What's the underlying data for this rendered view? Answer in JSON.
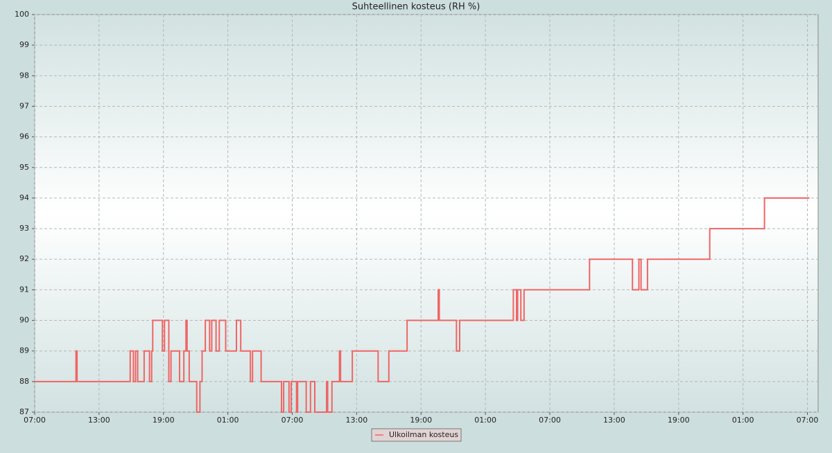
{
  "chart_data": {
    "type": "line",
    "title": "Suhteellinen kosteus (RH %)",
    "x": [
      0,
      3.85,
      3.85,
      3.95,
      3.95,
      8.9,
      8.9,
      9.2,
      9.2,
      9.4,
      9.4,
      9.6,
      9.6,
      10.2,
      10.2,
      10.7,
      10.7,
      10.9,
      10.9,
      11.0,
      11.0,
      11.9,
      11.9,
      12.1,
      12.1,
      12.5,
      12.5,
      12.7,
      12.7,
      13.5,
      13.5,
      13.9,
      13.9,
      14.1,
      14.1,
      14.2,
      14.2,
      14.4,
      14.4,
      15.1,
      15.1,
      15.4,
      15.4,
      15.6,
      15.6,
      15.9,
      15.9,
      16.3,
      16.3,
      16.5,
      16.5,
      16.9,
      16.9,
      17.2,
      17.2,
      17.8,
      17.8,
      18.8,
      18.8,
      19.2,
      19.2,
      20.1,
      20.1,
      20.3,
      20.3,
      21.1,
      21.1,
      23.0,
      23.0,
      23.2,
      23.2,
      23.7,
      23.7,
      23.9,
      23.9,
      24.4,
      24.4,
      24.5,
      24.5,
      25.3,
      25.3,
      25.7,
      25.7,
      26.1,
      26.1,
      27.2,
      27.2,
      27.3,
      27.3,
      27.7,
      27.7,
      28.4,
      28.4,
      28.5,
      28.5,
      29.6,
      29.6,
      32.0,
      32.0,
      33.0,
      33.0,
      34.7,
      34.7,
      37.6,
      37.6,
      37.7,
      37.7,
      39.3,
      39.3,
      39.6,
      39.6,
      44.6,
      44.6,
      44.9,
      44.9,
      45.0,
      45.0,
      45.3,
      45.3,
      45.6,
      45.6,
      51.7,
      51.7,
      55.7,
      55.7,
      56.3,
      56.3,
      56.5,
      56.5,
      57.1,
      57.1,
      62.9,
      62.9,
      68.0,
      68.0,
      72.2
    ],
    "series": [
      {
        "name": "Ulkoilman kosteus",
        "color": "#f06464",
        "values": [
          88,
          88,
          89,
          89,
          88,
          88,
          89,
          89,
          88,
          88,
          89,
          89,
          88,
          88,
          89,
          89,
          88,
          88,
          89,
          89,
          90,
          90,
          89,
          89,
          90,
          90,
          88,
          88,
          89,
          89,
          88,
          88,
          89,
          89,
          90,
          90,
          89,
          89,
          88,
          88,
          87,
          87,
          88,
          88,
          89,
          89,
          90,
          90,
          89,
          89,
          90,
          90,
          89,
          89,
          90,
          90,
          89,
          89,
          90,
          90,
          89,
          89,
          88,
          88,
          89,
          89,
          88,
          88,
          87,
          87,
          88,
          88,
          87,
          87,
          88,
          88,
          87,
          87,
          88,
          88,
          87,
          87,
          88,
          88,
          87,
          87,
          88,
          88,
          87,
          87,
          88,
          88,
          89,
          89,
          88,
          88,
          89,
          89,
          88,
          88,
          89,
          89,
          90,
          90,
          91,
          91,
          90,
          90,
          89,
          89,
          90,
          90,
          91,
          91,
          90,
          90,
          91,
          91,
          90,
          90,
          91,
          91,
          92,
          92,
          91,
          91,
          92,
          92,
          91,
          91,
          92,
          92,
          93,
          93,
          94,
          94
        ]
      }
    ],
    "xlim": [
      0,
      73
    ],
    "xticks": [
      {
        "value": 0,
        "label": "07:00"
      },
      {
        "value": 6,
        "label": "13:00"
      },
      {
        "value": 12,
        "label": "19:00"
      },
      {
        "value": 18,
        "label": "01:00"
      },
      {
        "value": 24,
        "label": "07:00"
      },
      {
        "value": 30,
        "label": "13:00"
      },
      {
        "value": 36,
        "label": "19:00"
      },
      {
        "value": 42,
        "label": "01:00"
      },
      {
        "value": 48,
        "label": "07:00"
      },
      {
        "value": 54,
        "label": "13:00"
      },
      {
        "value": 60,
        "label": "19:00"
      },
      {
        "value": 66,
        "label": "01:00"
      },
      {
        "value": 72,
        "label": "07:00"
      }
    ],
    "ylim": [
      87,
      100
    ],
    "yticks": [
      87,
      88,
      89,
      90,
      91,
      92,
      93,
      94,
      95,
      96,
      97,
      98,
      99,
      100
    ],
    "grid": true
  }
}
